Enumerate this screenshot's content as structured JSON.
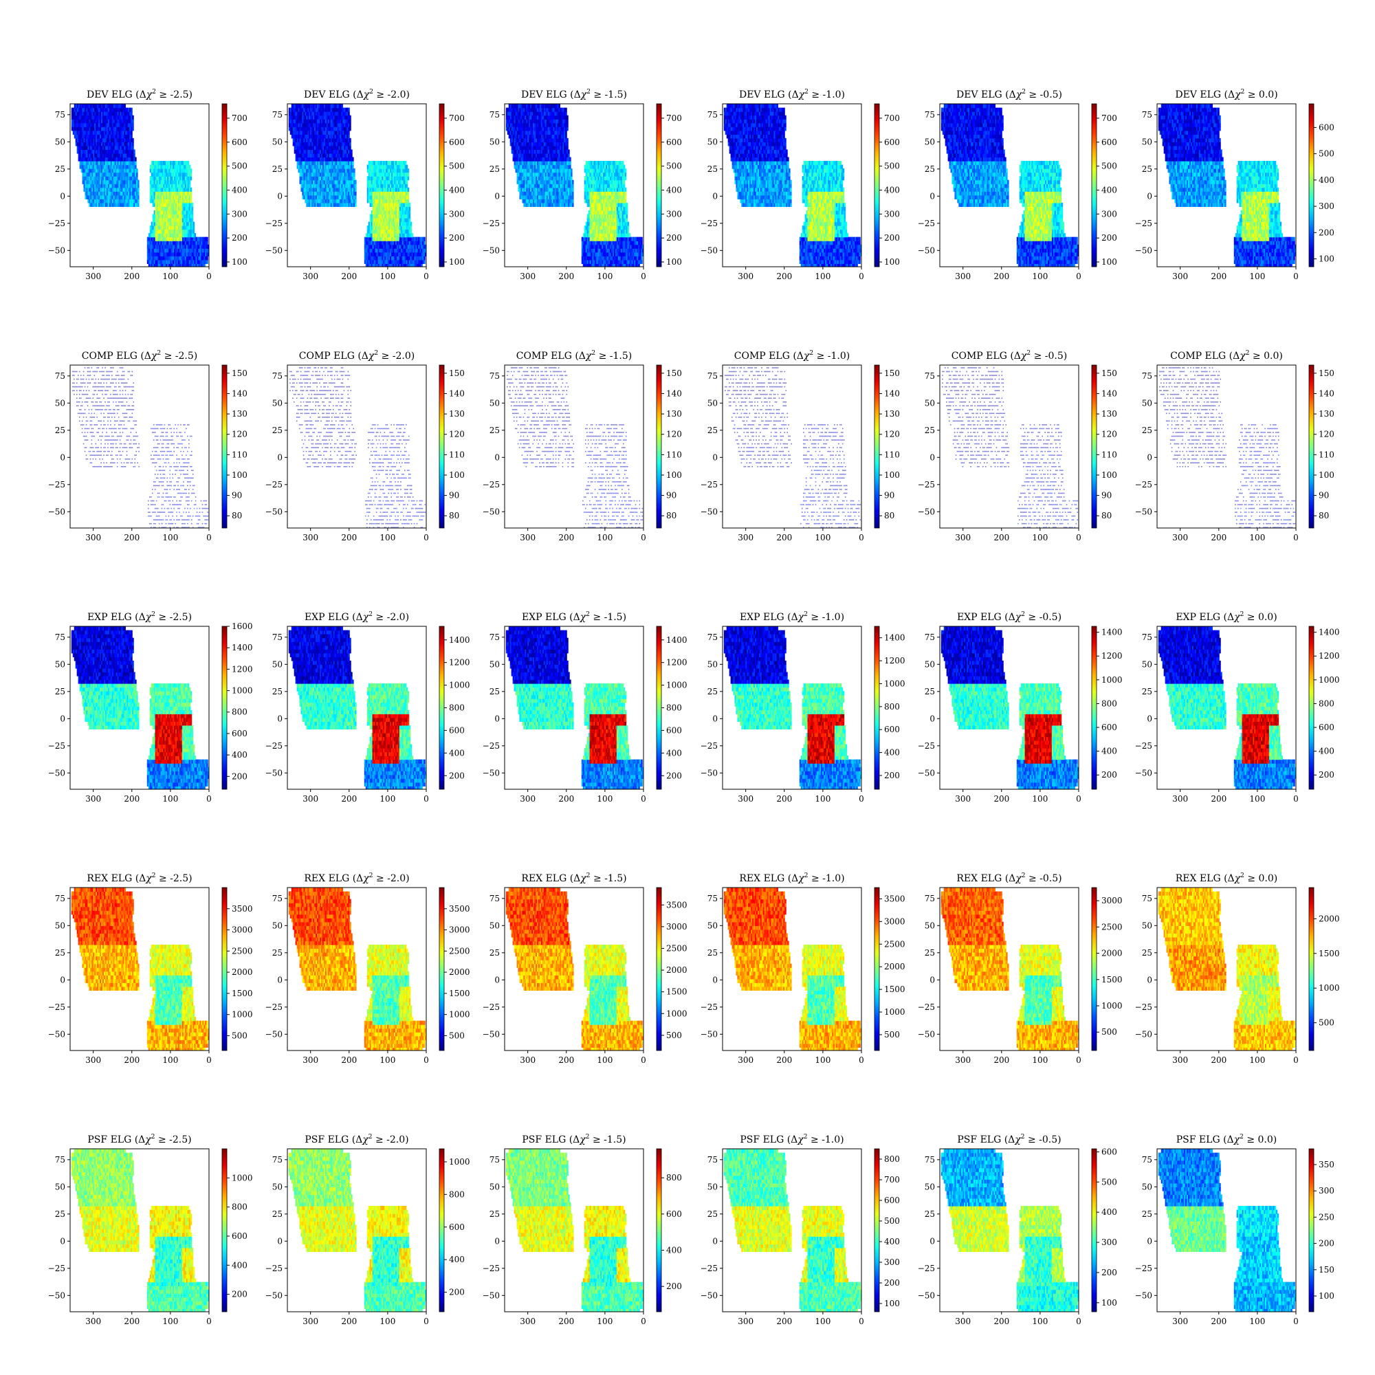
{
  "figure": {
    "x_ticks": [
      "300",
      "200",
      "100",
      "0"
    ],
    "y_ticks": [
      "75",
      "50",
      "25",
      "0",
      "−25",
      "−50"
    ],
    "columns": [
      {
        "threshold": "-2.5"
      },
      {
        "threshold": "-2.0"
      },
      {
        "threshold": "-1.5"
      },
      {
        "threshold": "-1.0"
      },
      {
        "threshold": "-0.5"
      },
      {
        "threshold": "0.0"
      }
    ],
    "colormap": "jet"
  },
  "chart_data": [
    {
      "type": "heatmap",
      "title": "DEV ELG (Δχ² ≥ -2.5)",
      "title_main": "DEV ELG",
      "threshold": "-2.5",
      "xlim": [
        360,
        0
      ],
      "ylim": [
        -65,
        85
      ],
      "colorbar": {
        "range": [
          80,
          760
        ],
        "ticks": [
          "100",
          "200",
          "300",
          "400",
          "500",
          "600",
          "700"
        ]
      },
      "level": {
        "north": 0.12,
        "south": 0.28,
        "ngc": 0.36,
        "blob": 0.55,
        "stripe": 0.18
      }
    },
    {
      "type": "heatmap",
      "title": "DEV ELG (Δχ² ≥ -2.0)",
      "title_main": "DEV ELG",
      "threshold": "-2.0",
      "xlim": [
        360,
        0
      ],
      "ylim": [
        -65,
        85
      ],
      "colorbar": {
        "range": [
          80,
          760
        ],
        "ticks": [
          "100",
          "200",
          "300",
          "400",
          "500",
          "600",
          "700"
        ]
      },
      "level": {
        "north": 0.12,
        "south": 0.28,
        "ngc": 0.36,
        "blob": 0.55,
        "stripe": 0.18
      }
    },
    {
      "type": "heatmap",
      "title": "DEV ELG (Δχ² ≥ -1.5)",
      "title_main": "DEV ELG",
      "threshold": "-1.5",
      "xlim": [
        360,
        0
      ],
      "ylim": [
        -65,
        85
      ],
      "colorbar": {
        "range": [
          80,
          760
        ],
        "ticks": [
          "100",
          "200",
          "300",
          "400",
          "500",
          "600",
          "700"
        ]
      },
      "level": {
        "north": 0.12,
        "south": 0.28,
        "ngc": 0.36,
        "blob": 0.55,
        "stripe": 0.18
      }
    },
    {
      "type": "heatmap",
      "title": "DEV ELG (Δχ² ≥ -1.0)",
      "title_main": "DEV ELG",
      "threshold": "-1.0",
      "xlim": [
        360,
        0
      ],
      "ylim": [
        -65,
        85
      ],
      "colorbar": {
        "range": [
          80,
          760
        ],
        "ticks": [
          "100",
          "200",
          "300",
          "400",
          "500",
          "600",
          "700"
        ]
      },
      "level": {
        "north": 0.12,
        "south": 0.28,
        "ngc": 0.36,
        "blob": 0.55,
        "stripe": 0.18
      }
    },
    {
      "type": "heatmap",
      "title": "DEV ELG (Δχ² ≥ -0.5)",
      "title_main": "DEV ELG",
      "threshold": "-0.5",
      "xlim": [
        360,
        0
      ],
      "ylim": [
        -65,
        85
      ],
      "colorbar": {
        "range": [
          80,
          760
        ],
        "ticks": [
          "100",
          "200",
          "300",
          "400",
          "500",
          "600",
          "700"
        ]
      },
      "level": {
        "north": 0.12,
        "south": 0.28,
        "ngc": 0.36,
        "blob": 0.55,
        "stripe": 0.18
      }
    },
    {
      "type": "heatmap",
      "title": "DEV ELG (Δχ² ≥ 0.0)",
      "title_main": "DEV ELG",
      "threshold": "0.0",
      "xlim": [
        360,
        0
      ],
      "ylim": [
        -65,
        85
      ],
      "colorbar": {
        "range": [
          70,
          690
        ],
        "ticks": [
          "100",
          "200",
          "300",
          "400",
          "500",
          "600"
        ]
      },
      "level": {
        "north": 0.12,
        "south": 0.28,
        "ngc": 0.36,
        "blob": 0.55,
        "stripe": 0.18
      }
    },
    {
      "type": "heatmap",
      "title": "COMP ELG (Δχ² ≥ -2.5)",
      "title_main": "COMP ELG",
      "threshold": "-2.5",
      "xlim": [
        360,
        0
      ],
      "ylim": [
        -65,
        85
      ],
      "sparse": true,
      "colorbar": {
        "range": [
          74,
          154
        ],
        "ticks": [
          "80",
          "90",
          "100",
          "110",
          "120",
          "130",
          "140",
          "150"
        ]
      },
      "level": {
        "north": 0.04,
        "south": 0.06,
        "ngc": 0.08,
        "blob": 0.1,
        "stripe": 0.1
      }
    },
    {
      "type": "heatmap",
      "title": "COMP ELG (Δχ² ≥ -2.0)",
      "title_main": "COMP ELG",
      "threshold": "-2.0",
      "xlim": [
        360,
        0
      ],
      "ylim": [
        -65,
        85
      ],
      "sparse": true,
      "colorbar": {
        "range": [
          74,
          154
        ],
        "ticks": [
          "80",
          "90",
          "100",
          "110",
          "120",
          "130",
          "140",
          "150"
        ]
      },
      "level": {
        "north": 0.04,
        "south": 0.06,
        "ngc": 0.08,
        "blob": 0.1,
        "stripe": 0.1
      }
    },
    {
      "type": "heatmap",
      "title": "COMP ELG (Δχ² ≥ -1.5)",
      "title_main": "COMP ELG",
      "threshold": "-1.5",
      "xlim": [
        360,
        0
      ],
      "ylim": [
        -65,
        85
      ],
      "sparse": true,
      "colorbar": {
        "range": [
          74,
          154
        ],
        "ticks": [
          "80",
          "90",
          "100",
          "110",
          "120",
          "130",
          "140",
          "150"
        ]
      },
      "level": {
        "north": 0.04,
        "south": 0.06,
        "ngc": 0.08,
        "blob": 0.1,
        "stripe": 0.1
      }
    },
    {
      "type": "heatmap",
      "title": "COMP ELG (Δχ² ≥ -1.0)",
      "title_main": "COMP ELG",
      "threshold": "-1.0",
      "xlim": [
        360,
        0
      ],
      "ylim": [
        -65,
        85
      ],
      "sparse": true,
      "colorbar": {
        "range": [
          74,
          154
        ],
        "ticks": [
          "80",
          "90",
          "100",
          "110",
          "120",
          "130",
          "140",
          "150"
        ]
      },
      "level": {
        "north": 0.04,
        "south": 0.06,
        "ngc": 0.08,
        "blob": 0.1,
        "stripe": 0.1
      }
    },
    {
      "type": "heatmap",
      "title": "COMP ELG (Δχ² ≥ -0.5)",
      "title_main": "COMP ELG",
      "threshold": "-0.5",
      "xlim": [
        360,
        0
      ],
      "ylim": [
        -65,
        85
      ],
      "sparse": true,
      "colorbar": {
        "range": [
          74,
          154
        ],
        "ticks": [
          "80",
          "90",
          "100",
          "110",
          "120",
          "130",
          "140",
          "150"
        ]
      },
      "level": {
        "north": 0.04,
        "south": 0.06,
        "ngc": 0.08,
        "blob": 0.1,
        "stripe": 0.1
      }
    },
    {
      "type": "heatmap",
      "title": "COMP ELG (Δχ² ≥ 0.0)",
      "title_main": "COMP ELG",
      "threshold": "0.0",
      "xlim": [
        360,
        0
      ],
      "ylim": [
        -65,
        85
      ],
      "sparse": true,
      "colorbar": {
        "range": [
          74,
          154
        ],
        "ticks": [
          "80",
          "90",
          "100",
          "110",
          "120",
          "130",
          "140",
          "150"
        ]
      },
      "level": {
        "north": 0.04,
        "south": 0.06,
        "ngc": 0.08,
        "blob": 0.1,
        "stripe": 0.1
      }
    },
    {
      "type": "heatmap",
      "title": "EXP ELG (Δχ² ≥ -2.5)",
      "title_main": "EXP ELG",
      "threshold": "-2.5",
      "xlim": [
        360,
        0
      ],
      "ylim": [
        -65,
        85
      ],
      "colorbar": {
        "range": [
          80,
          1600
        ],
        "ticks": [
          "200",
          "400",
          "600",
          "800",
          "1000",
          "1200",
          "1400",
          "1600"
        ]
      },
      "level": {
        "north": 0.1,
        "south": 0.42,
        "ngc": 0.45,
        "blob": 0.9,
        "stripe": 0.25
      }
    },
    {
      "type": "heatmap",
      "title": "EXP ELG (Δχ² ≥ -2.0)",
      "title_main": "EXP ELG",
      "threshold": "-2.0",
      "xlim": [
        360,
        0
      ],
      "ylim": [
        -65,
        85
      ],
      "colorbar": {
        "range": [
          80,
          1520
        ],
        "ticks": [
          "200",
          "400",
          "600",
          "800",
          "1000",
          "1200",
          "1400"
        ]
      },
      "level": {
        "north": 0.1,
        "south": 0.42,
        "ngc": 0.45,
        "blob": 0.9,
        "stripe": 0.25
      }
    },
    {
      "type": "heatmap",
      "title": "EXP ELG (Δχ² ≥ -1.5)",
      "title_main": "EXP ELG",
      "threshold": "-1.5",
      "xlim": [
        360,
        0
      ],
      "ylim": [
        -65,
        85
      ],
      "colorbar": {
        "range": [
          80,
          1520
        ],
        "ticks": [
          "200",
          "400",
          "600",
          "800",
          "1000",
          "1200",
          "1400"
        ]
      },
      "level": {
        "north": 0.1,
        "south": 0.42,
        "ngc": 0.45,
        "blob": 0.9,
        "stripe": 0.25
      }
    },
    {
      "type": "heatmap",
      "title": "EXP ELG (Δχ² ≥ -1.0)",
      "title_main": "EXP ELG",
      "threshold": "-1.0",
      "xlim": [
        360,
        0
      ],
      "ylim": [
        -65,
        85
      ],
      "colorbar": {
        "range": [
          80,
          1500
        ],
        "ticks": [
          "200",
          "400",
          "600",
          "800",
          "1000",
          "1200",
          "1400"
        ]
      },
      "level": {
        "north": 0.1,
        "south": 0.42,
        "ngc": 0.45,
        "blob": 0.9,
        "stripe": 0.25
      }
    },
    {
      "type": "heatmap",
      "title": "EXP ELG (Δχ² ≥ -0.5)",
      "title_main": "EXP ELG",
      "threshold": "-0.5",
      "xlim": [
        360,
        0
      ],
      "ylim": [
        -65,
        85
      ],
      "colorbar": {
        "range": [
          80,
          1450
        ],
        "ticks": [
          "200",
          "400",
          "600",
          "800",
          "1000",
          "1200",
          "1400"
        ]
      },
      "level": {
        "north": 0.1,
        "south": 0.42,
        "ngc": 0.45,
        "blob": 0.9,
        "stripe": 0.25
      }
    },
    {
      "type": "heatmap",
      "title": "EXP ELG (Δχ² ≥ 0.0)",
      "title_main": "EXP ELG",
      "threshold": "0.0",
      "xlim": [
        360,
        0
      ],
      "ylim": [
        -65,
        85
      ],
      "colorbar": {
        "range": [
          80,
          1450
        ],
        "ticks": [
          "200",
          "400",
          "600",
          "800",
          "1000",
          "1200",
          "1400"
        ]
      },
      "level": {
        "north": 0.1,
        "south": 0.42,
        "ngc": 0.45,
        "blob": 0.9,
        "stripe": 0.25
      }
    },
    {
      "type": "heatmap",
      "title": "REX ELG (Δχ² ≥ -2.5)",
      "title_main": "REX ELG",
      "threshold": "-2.5",
      "xlim": [
        360,
        0
      ],
      "ylim": [
        -65,
        85
      ],
      "colorbar": {
        "range": [
          150,
          4000
        ],
        "ticks": [
          "500",
          "1000",
          "1500",
          "2000",
          "2500",
          "3000",
          "3500"
        ]
      },
      "level": {
        "north": 0.8,
        "south": 0.7,
        "ngc": 0.6,
        "blob": 0.45,
        "stripe": 0.7
      }
    },
    {
      "type": "heatmap",
      "title": "REX ELG (Δχ² ≥ -2.0)",
      "title_main": "REX ELG",
      "threshold": "-2.0",
      "xlim": [
        360,
        0
      ],
      "ylim": [
        -65,
        85
      ],
      "colorbar": {
        "range": [
          150,
          4000
        ],
        "ticks": [
          "500",
          "1000",
          "1500",
          "2000",
          "2500",
          "3000",
          "3500"
        ]
      },
      "level": {
        "north": 0.8,
        "south": 0.7,
        "ngc": 0.6,
        "blob": 0.45,
        "stripe": 0.7
      }
    },
    {
      "type": "heatmap",
      "title": "REX ELG (Δχ² ≥ -1.5)",
      "title_main": "REX ELG",
      "threshold": "-1.5",
      "xlim": [
        360,
        0
      ],
      "ylim": [
        -65,
        85
      ],
      "colorbar": {
        "range": [
          150,
          3900
        ],
        "ticks": [
          "500",
          "1000",
          "1500",
          "2000",
          "2500",
          "3000",
          "3500"
        ]
      },
      "level": {
        "north": 0.8,
        "south": 0.7,
        "ngc": 0.6,
        "blob": 0.45,
        "stripe": 0.7
      }
    },
    {
      "type": "heatmap",
      "title": "REX ELG (Δχ² ≥ -1.0)",
      "title_main": "REX ELG",
      "threshold": "-1.0",
      "xlim": [
        360,
        0
      ],
      "ylim": [
        -65,
        85
      ],
      "colorbar": {
        "range": [
          150,
          3750
        ],
        "ticks": [
          "500",
          "1000",
          "1500",
          "2000",
          "2500",
          "3000",
          "3500"
        ]
      },
      "level": {
        "north": 0.8,
        "south": 0.7,
        "ngc": 0.6,
        "blob": 0.45,
        "stripe": 0.7
      }
    },
    {
      "type": "heatmap",
      "title": "REX ELG (Δχ² ≥ -0.5)",
      "title_main": "REX ELG",
      "threshold": "-0.5",
      "xlim": [
        360,
        0
      ],
      "ylim": [
        -65,
        85
      ],
      "colorbar": {
        "range": [
          150,
          3250
        ],
        "ticks": [
          "500",
          "1000",
          "1500",
          "2000",
          "2500",
          "3000"
        ]
      },
      "level": {
        "north": 0.78,
        "south": 0.7,
        "ngc": 0.6,
        "blob": 0.45,
        "stripe": 0.7
      }
    },
    {
      "type": "heatmap",
      "title": "REX ELG (Δχ² ≥ 0.0)",
      "title_main": "REX ELG",
      "threshold": "0.0",
      "xlim": [
        360,
        0
      ],
      "ylim": [
        -65,
        85
      ],
      "colorbar": {
        "range": [
          100,
          2450
        ],
        "ticks": [
          "500",
          "1000",
          "1500",
          "2000"
        ]
      },
      "level": {
        "north": 0.68,
        "south": 0.72,
        "ngc": 0.62,
        "blob": 0.55,
        "stripe": 0.68
      }
    },
    {
      "type": "heatmap",
      "title": "PSF ELG (Δχ² ≥ -2.5)",
      "title_main": "PSF ELG",
      "threshold": "-2.5",
      "xlim": [
        360,
        0
      ],
      "ylim": [
        -65,
        85
      ],
      "colorbar": {
        "range": [
          80,
          1200
        ],
        "ticks": [
          "200",
          "400",
          "600",
          "800",
          "1000"
        ]
      },
      "level": {
        "north": 0.52,
        "south": 0.6,
        "ngc": 0.62,
        "blob": 0.42,
        "stripe": 0.45
      }
    },
    {
      "type": "heatmap",
      "title": "PSF ELG (Δχ² ≥ -2.0)",
      "title_main": "PSF ELG",
      "threshold": "-2.0",
      "xlim": [
        360,
        0
      ],
      "ylim": [
        -65,
        85
      ],
      "colorbar": {
        "range": [
          80,
          1080
        ],
        "ticks": [
          "200",
          "400",
          "600",
          "800",
          "1000"
        ]
      },
      "level": {
        "north": 0.52,
        "south": 0.6,
        "ngc": 0.62,
        "blob": 0.42,
        "stripe": 0.45
      }
    },
    {
      "type": "heatmap",
      "title": "PSF ELG (Δχ² ≥ -1.5)",
      "title_main": "PSF ELG",
      "threshold": "-1.5",
      "xlim": [
        360,
        0
      ],
      "ylim": [
        -65,
        85
      ],
      "colorbar": {
        "range": [
          60,
          960
        ],
        "ticks": [
          "200",
          "400",
          "600",
          "800"
        ]
      },
      "level": {
        "north": 0.5,
        "south": 0.6,
        "ngc": 0.62,
        "blob": 0.42,
        "stripe": 0.45
      }
    },
    {
      "type": "heatmap",
      "title": "PSF ELG (Δχ² ≥ -1.0)",
      "title_main": "PSF ELG",
      "threshold": "-1.0",
      "xlim": [
        360,
        0
      ],
      "ylim": [
        -65,
        85
      ],
      "colorbar": {
        "range": [
          60,
          850
        ],
        "ticks": [
          "100",
          "200",
          "300",
          "400",
          "500",
          "600",
          "700",
          "800"
        ]
      },
      "level": {
        "north": 0.45,
        "south": 0.6,
        "ngc": 0.6,
        "blob": 0.42,
        "stripe": 0.45
      }
    },
    {
      "type": "heatmap",
      "title": "PSF ELG (Δχ² ≥ -0.5)",
      "title_main": "PSF ELG",
      "threshold": "-0.5",
      "xlim": [
        360,
        0
      ],
      "ylim": [
        -65,
        85
      ],
      "colorbar": {
        "range": [
          70,
          610
        ],
        "ticks": [
          "100",
          "200",
          "300",
          "400",
          "500",
          "600"
        ]
      },
      "level": {
        "north": 0.3,
        "south": 0.58,
        "ngc": 0.55,
        "blob": 0.42,
        "stripe": 0.4
      }
    },
    {
      "type": "heatmap",
      "title": "PSF ELG (Δχ² ≥ 0.0)",
      "title_main": "PSF ELG",
      "threshold": "0.0",
      "xlim": [
        360,
        0
      ],
      "ylim": [
        -65,
        85
      ],
      "colorbar": {
        "range": [
          70,
          380
        ],
        "ticks": [
          "100",
          "150",
          "200",
          "250",
          "300",
          "350"
        ]
      },
      "level": {
        "north": 0.25,
        "south": 0.48,
        "ngc": 0.35,
        "blob": 0.32,
        "stripe": 0.3
      }
    }
  ]
}
